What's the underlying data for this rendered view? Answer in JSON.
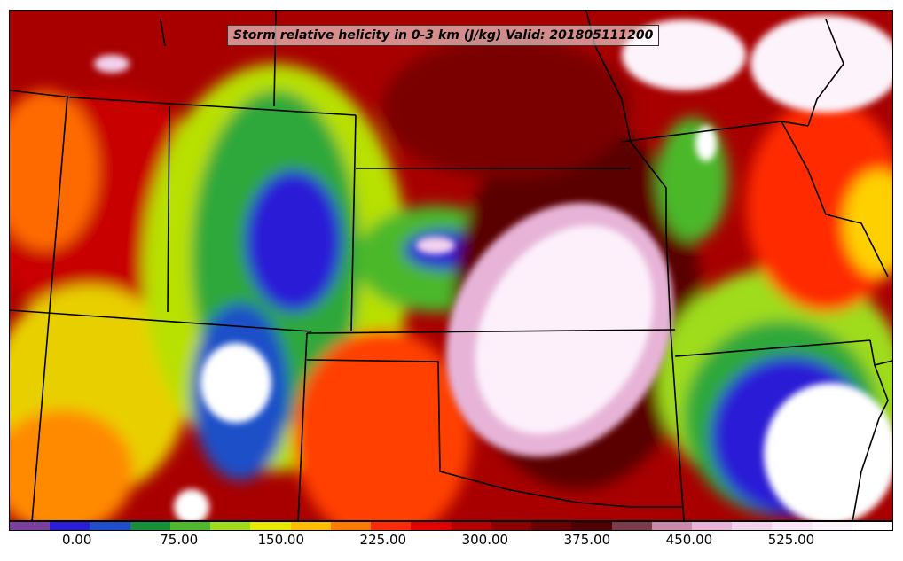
{
  "title": "Storm relative helicity in 0-3 km (J/kg) Valid: 201805111200",
  "colorbar": {
    "colors": [
      "#7b3f9e",
      "#2a1fd6",
      "#1f4fc8",
      "#15913a",
      "#4cb82a",
      "#9fdc1a",
      "#e8e800",
      "#ffbf00",
      "#ff7a00",
      "#ff2a00",
      "#e00000",
      "#b40000",
      "#8c0000",
      "#6a0000",
      "#500000",
      "#7a3b4a",
      "#c88aa8",
      "#e7b4d8",
      "#f3d2ee",
      "#f9e6f6",
      "#fdf3fb",
      "#ffffff"
    ],
    "tick_labels": [
      "0.00",
      "75.00",
      "150.00",
      "225.00",
      "300.00",
      "375.00",
      "450.00",
      "525.00"
    ],
    "min": -50,
    "max": 600
  },
  "map": {
    "ocean_color": "#ffffff",
    "border_color": "#000000"
  }
}
